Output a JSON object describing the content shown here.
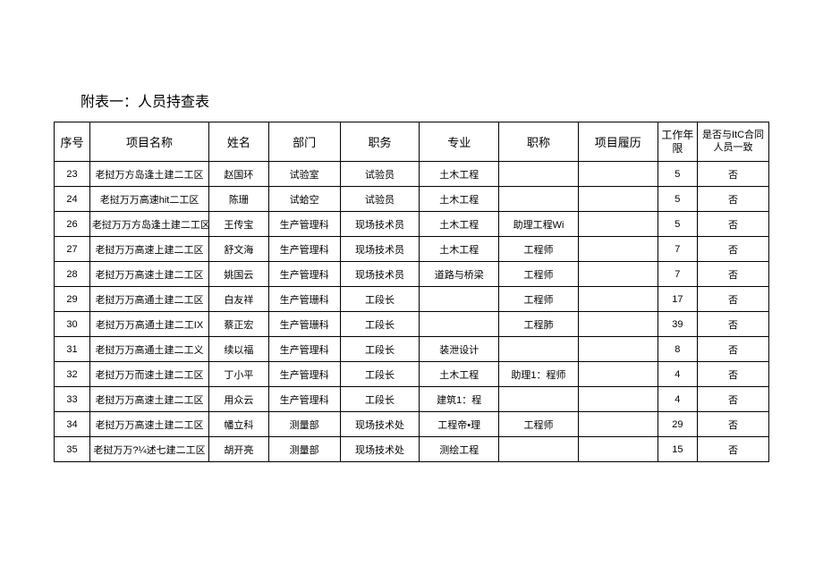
{
  "title": "附表一：人员持查表",
  "columns": [
    "序号",
    "项目名称",
    "姓名",
    "部门",
    "职务",
    "专业",
    "职称",
    "项目履历",
    "工作年限",
    "是否与ItC合同人员一致"
  ],
  "rows": [
    [
      "23",
      "老挝万方岛逢土建二工区",
      "赵国环",
      "试验室",
      "试验员",
      "土木工程",
      "",
      "",
      "5",
      "否"
    ],
    [
      "24",
      "老挝万万高速hit二工区",
      "陈珊",
      "试蛤空",
      "试验员",
      "土木工程",
      "",
      "",
      "5",
      "否"
    ],
    [
      "26",
      "老挝万万方岛逢土建二工区",
      "王传宝",
      "生产管理科",
      "现场技术员",
      "土木工程",
      "助理工程Wi",
      "",
      "5",
      "否"
    ],
    [
      "27",
      "老挝万万高速上建二工区",
      "舒文海",
      "生产管理科",
      "现场技术员",
      "土木工程",
      "工程师",
      "",
      "7",
      "否"
    ],
    [
      "28",
      "老挝万万高速土建二工区",
      "姚国云",
      "生产管理科",
      "现场技术员",
      "道路与桥梁",
      "工程师",
      "",
      "7",
      "否"
    ],
    [
      "29",
      "老挝万万高通土建二工区",
      "白友祥",
      "生产管珊科",
      "工段长",
      "",
      "工程师",
      "",
      "17",
      "否"
    ],
    [
      "30",
      "老挝万万高通土建二工IX",
      "蔡正宏",
      "生产管珊科",
      "工段长",
      "",
      "工程肺",
      "",
      "39",
      "否"
    ],
    [
      "31",
      "老挝万万高通土建二工义",
      "续以福",
      "生产管理科",
      "工段长",
      "装泄设计",
      "",
      "",
      "8",
      "否"
    ],
    [
      "32",
      "老挝万万而速土建二工区",
      "丁小平",
      "生产管理科",
      "工段长",
      "土木工程",
      "助理1：程师",
      "",
      "4",
      "否"
    ],
    [
      "33",
      "老挝万万高速土建二工区",
      "用众云",
      "生产管理科",
      "工段长",
      "建筑1：程",
      "",
      "",
      "4",
      "否"
    ],
    [
      "34",
      "老挝万万高速土建二工区",
      "幡立科",
      "测量部",
      "现场技术处",
      "工程帝•理",
      "工程师",
      "",
      "29",
      "否"
    ],
    [
      "35",
      "老挝万万?¼述七建二工区",
      "胡开亮",
      "测量部",
      "现场技术处",
      "测绘工程",
      "",
      "",
      "15",
      "否"
    ]
  ]
}
